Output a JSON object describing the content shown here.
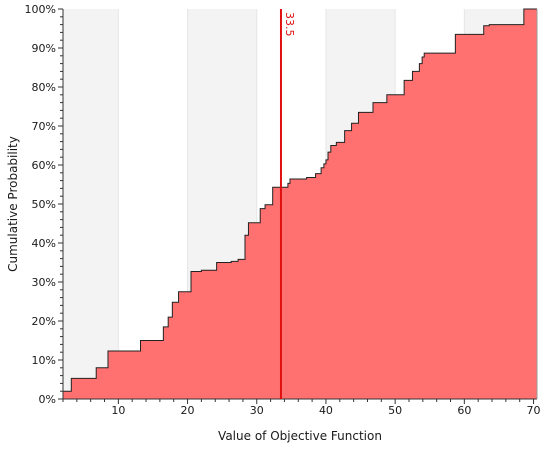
{
  "chart_data": {
    "type": "area",
    "xlabel": "Value of Objective Function",
    "ylabel": "Cumulative Probability",
    "xlim": [
      2,
      70.5
    ],
    "ylim": [
      0,
      100
    ],
    "x_ticks": [
      10,
      20,
      30,
      40,
      50,
      60,
      70
    ],
    "y_ticks": [
      0,
      10,
      20,
      30,
      40,
      50,
      60,
      70,
      80,
      90,
      100
    ],
    "x_tick_labels": [
      "10",
      "20",
      "30",
      "40",
      "50",
      "60",
      "70"
    ],
    "y_tick_labels": [
      "0%",
      "10%",
      "20%",
      "30%",
      "40%",
      "50%",
      "60%",
      "70%",
      "80%",
      "90%",
      "100%"
    ],
    "grid": "alternating vertical bands",
    "marker_line": {
      "x": 33.5,
      "label": "33.5",
      "color": "#e01010"
    },
    "fill_color": "#ff7070",
    "step_points": [
      [
        2,
        2
      ],
      [
        3.2,
        2
      ],
      [
        3.2,
        5.3
      ],
      [
        6.8,
        5.3
      ],
      [
        6.8,
        8
      ],
      [
        8.5,
        8
      ],
      [
        8.5,
        12.3
      ],
      [
        13.2,
        12.3
      ],
      [
        13.2,
        15
      ],
      [
        16.5,
        15
      ],
      [
        16.5,
        18.5
      ],
      [
        17.2,
        18.5
      ],
      [
        17.2,
        21
      ],
      [
        17.8,
        21
      ],
      [
        17.8,
        24.8
      ],
      [
        18.7,
        24.8
      ],
      [
        18.7,
        27.5
      ],
      [
        20.5,
        27.5
      ],
      [
        20.5,
        32.7
      ],
      [
        22,
        32.7
      ],
      [
        22,
        33
      ],
      [
        24.2,
        33
      ],
      [
        24.2,
        35
      ],
      [
        26.3,
        35
      ],
      [
        26.3,
        35.3
      ],
      [
        27.3,
        35.3
      ],
      [
        27.3,
        35.8
      ],
      [
        28.3,
        35.8
      ],
      [
        28.3,
        42
      ],
      [
        28.8,
        42
      ],
      [
        28.8,
        45.2
      ],
      [
        30.5,
        45.2
      ],
      [
        30.5,
        48.8
      ],
      [
        31.2,
        48.8
      ],
      [
        31.2,
        49.8
      ],
      [
        32.3,
        49.8
      ],
      [
        32.3,
        54.3
      ],
      [
        34.5,
        54.3
      ],
      [
        34.5,
        55.3
      ],
      [
        34.8,
        55.3
      ],
      [
        34.8,
        56.4
      ],
      [
        37.2,
        56.4
      ],
      [
        37.2,
        56.8
      ],
      [
        38.5,
        56.8
      ],
      [
        38.5,
        57.8
      ],
      [
        39.3,
        57.8
      ],
      [
        39.3,
        59.3
      ],
      [
        39.7,
        59.3
      ],
      [
        39.7,
        60.3
      ],
      [
        40,
        60.3
      ],
      [
        40,
        61.3
      ],
      [
        40.3,
        61.3
      ],
      [
        40.3,
        63.3
      ],
      [
        40.7,
        63.3
      ],
      [
        40.7,
        65
      ],
      [
        41.5,
        65
      ],
      [
        41.5,
        65.8
      ],
      [
        42.7,
        65.8
      ],
      [
        42.7,
        68.8
      ],
      [
        43.7,
        68.8
      ],
      [
        43.7,
        70.7
      ],
      [
        44.7,
        70.7
      ],
      [
        44.7,
        73.5
      ],
      [
        46.8,
        73.5
      ],
      [
        46.8,
        76
      ],
      [
        48.8,
        76
      ],
      [
        48.8,
        78
      ],
      [
        51.3,
        78
      ],
      [
        51.3,
        81.7
      ],
      [
        52.5,
        81.7
      ],
      [
        52.5,
        84
      ],
      [
        53.5,
        84
      ],
      [
        53.5,
        86
      ],
      [
        53.9,
        86
      ],
      [
        53.9,
        87.7
      ],
      [
        54.2,
        87.7
      ],
      [
        54.2,
        88.7
      ],
      [
        58.7,
        88.7
      ],
      [
        58.7,
        93.5
      ],
      [
        62.8,
        93.5
      ],
      [
        62.8,
        95.7
      ],
      [
        63.6,
        95.7
      ],
      [
        63.6,
        96
      ],
      [
        68.6,
        96
      ],
      [
        68.6,
        100
      ],
      [
        70.5,
        100
      ]
    ]
  }
}
